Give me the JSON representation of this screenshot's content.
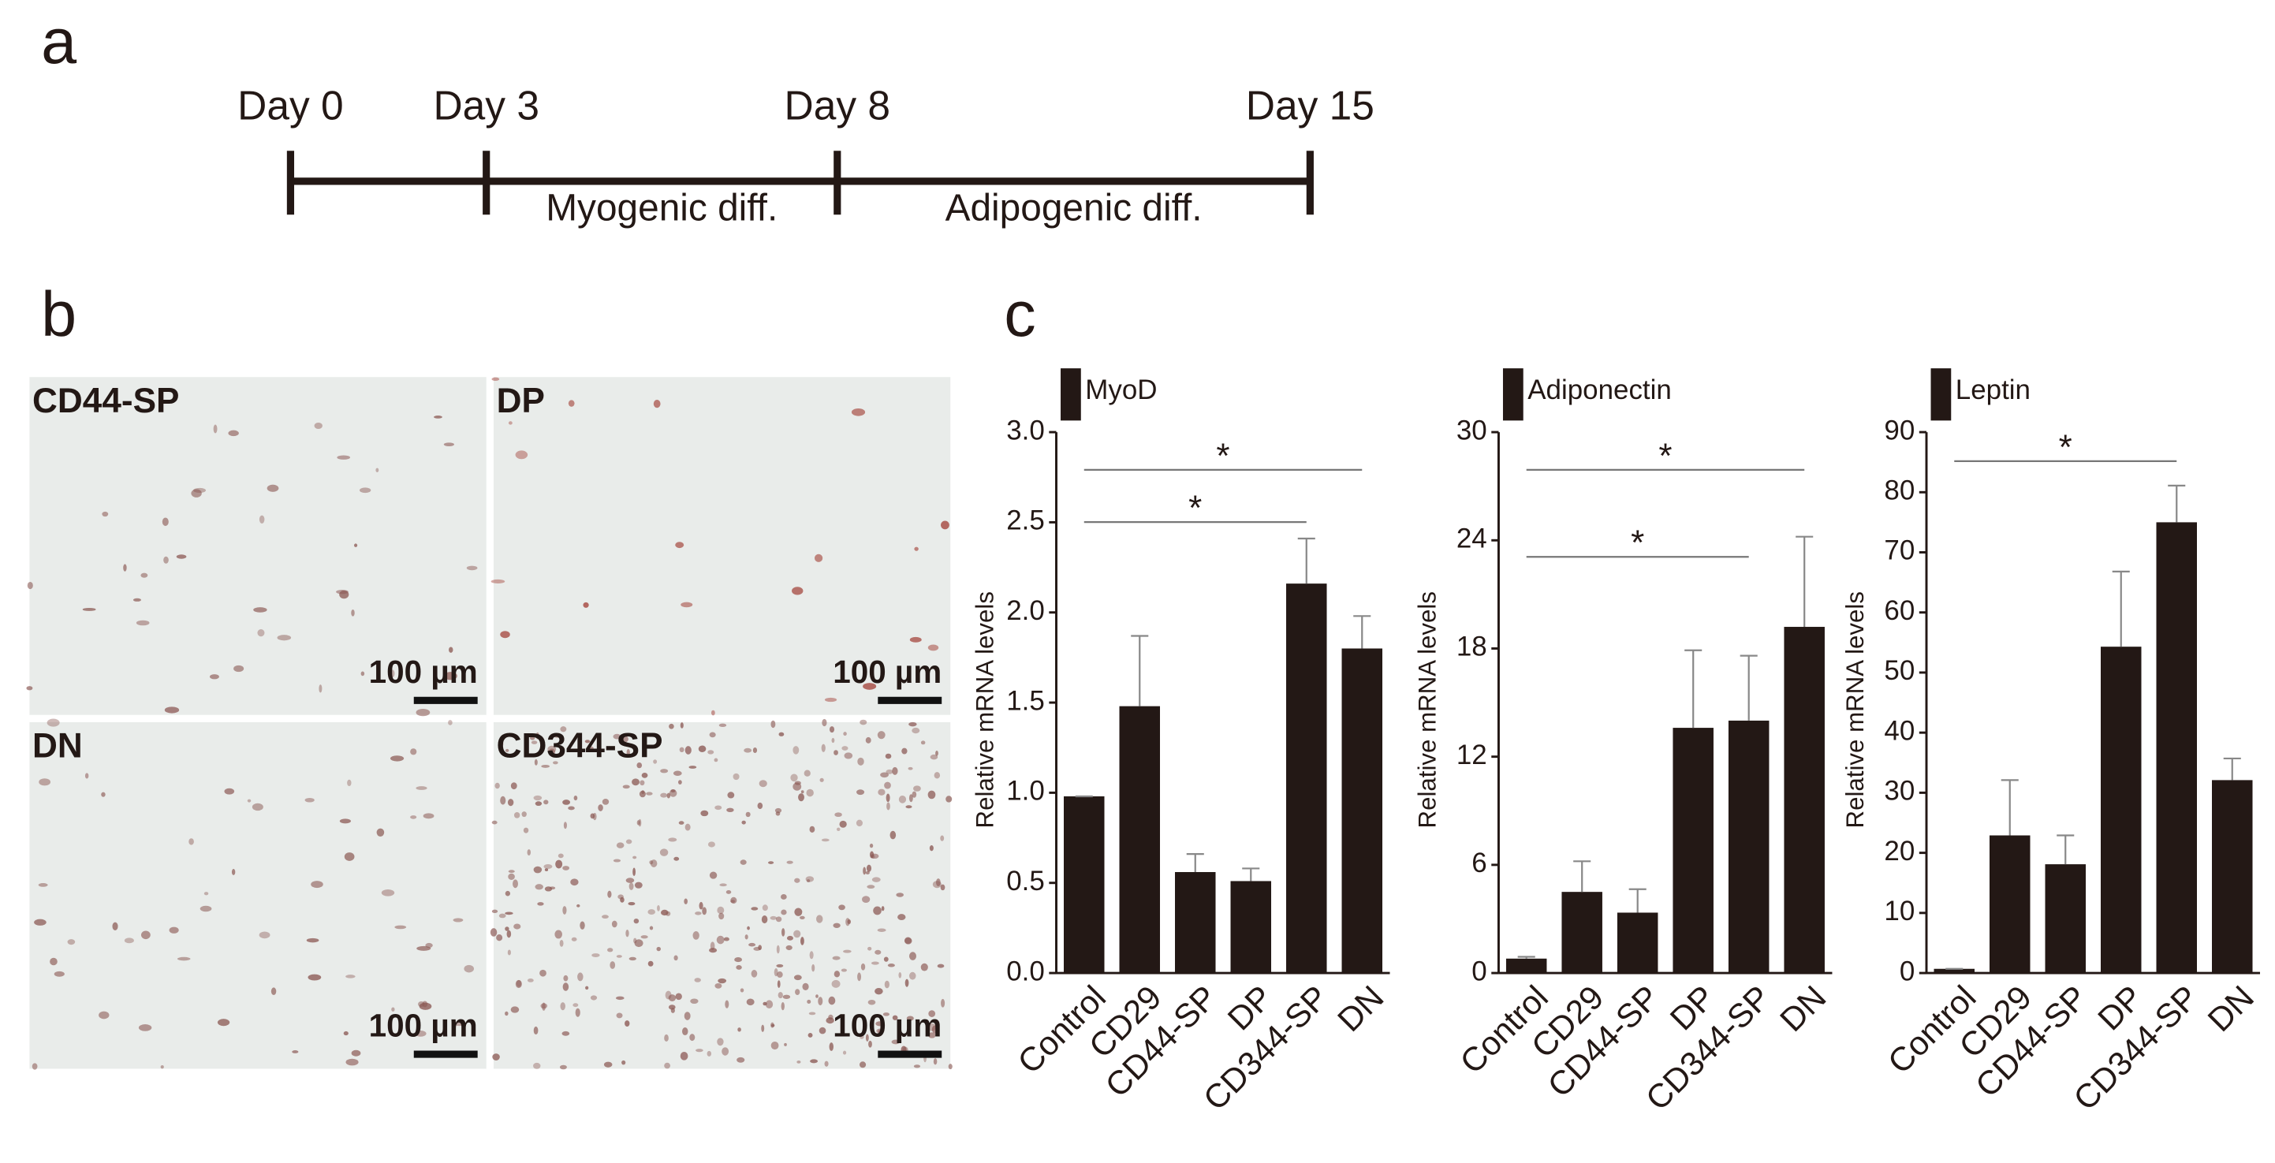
{
  "panel_a": {
    "letter": "a",
    "timeline": [
      "Day 0",
      "Day 3",
      "Day 8",
      "Day 15"
    ],
    "phases": [
      "Myogenic diff.",
      "Adipogenic diff."
    ]
  },
  "panel_b": {
    "letter": "b",
    "images": [
      {
        "label": "CD44-SP",
        "scale": "100 µm"
      },
      {
        "label": "DP",
        "scale": "100 µm"
      },
      {
        "label": "DN",
        "scale": "100 µm"
      },
      {
        "label": "CD344-SP",
        "scale": "100 µm"
      }
    ]
  },
  "panel_c": {
    "letter": "c"
  },
  "chart_data": [
    {
      "type": "bar",
      "ylabel": "Relative mRNA levels",
      "categories": [
        "Control",
        "CD29",
        "CD44-SP",
        "DP",
        "CD344-SP",
        "DN"
      ],
      "series": [
        {
          "name": "MyoD",
          "color": "#231815",
          "values": [
            0.98,
            1.48,
            0.56,
            0.51,
            2.16,
            1.8
          ],
          "errors": [
            0,
            0.39,
            0.1,
            0.07,
            0.25,
            0.18
          ]
        }
      ],
      "ylim": [
        0,
        3
      ],
      "yticks": [
        {
          "value": 0,
          "label": "0.0"
        },
        {
          "value": 0.5,
          "label": "0.5"
        },
        {
          "value": 1,
          "label": "1.0"
        },
        {
          "value": 1.5,
          "label": "1.5"
        },
        {
          "value": 2,
          "label": "2.0"
        },
        {
          "value": 2.5,
          "label": "2.5"
        },
        {
          "value": 3,
          "label": "3.0"
        }
      ],
      "annotations": [
        {
          "text": "*",
          "between": [
            "Control",
            "DN"
          ]
        },
        {
          "text": "*",
          "between": [
            "Control",
            "CD344-SP"
          ]
        }
      ]
    },
    {
      "type": "bar",
      "ylabel": "Relative mRNA levels",
      "categories": [
        "Control",
        "CD29",
        "CD44-SP",
        "DP",
        "CD344-SP",
        "DN"
      ],
      "series": [
        {
          "name": "Adiponectin",
          "color": "#231815",
          "values": [
            0.8,
            4.5,
            3.35,
            13.6,
            14.0,
            19.2
          ],
          "errors": [
            0.1,
            1.7,
            1.3,
            4.3,
            3.6,
            5.0
          ]
        }
      ],
      "ylim": [
        0,
        30
      ],
      "yticks": [
        0,
        6,
        12,
        18,
        24,
        30
      ],
      "annotations": [
        {
          "text": "*",
          "between": [
            "Control",
            "DN"
          ]
        },
        {
          "text": "*",
          "between": [
            "Control",
            "CD344-SP"
          ]
        }
      ]
    },
    {
      "type": "bar",
      "ylabel": "Relative mRNA levels",
      "categories": [
        "Control",
        "CD29",
        "CD44-SP",
        "DP",
        "CD344-SP",
        "DN"
      ],
      "series": [
        {
          "name": "Leptin",
          "color": "#231815",
          "values": [
            0.7,
            22.9,
            18.1,
            54.3,
            75.0,
            32.1
          ],
          "errors": [
            0,
            9.2,
            4.8,
            12.5,
            6.1,
            3.6
          ]
        }
      ],
      "ylim": [
        0,
        90
      ],
      "yticks": [
        0,
        10,
        20,
        30,
        40,
        50,
        60,
        70,
        80,
        90
      ],
      "annotations": [
        {
          "text": "*",
          "between": [
            "Control",
            "CD344-SP"
          ]
        }
      ]
    }
  ]
}
